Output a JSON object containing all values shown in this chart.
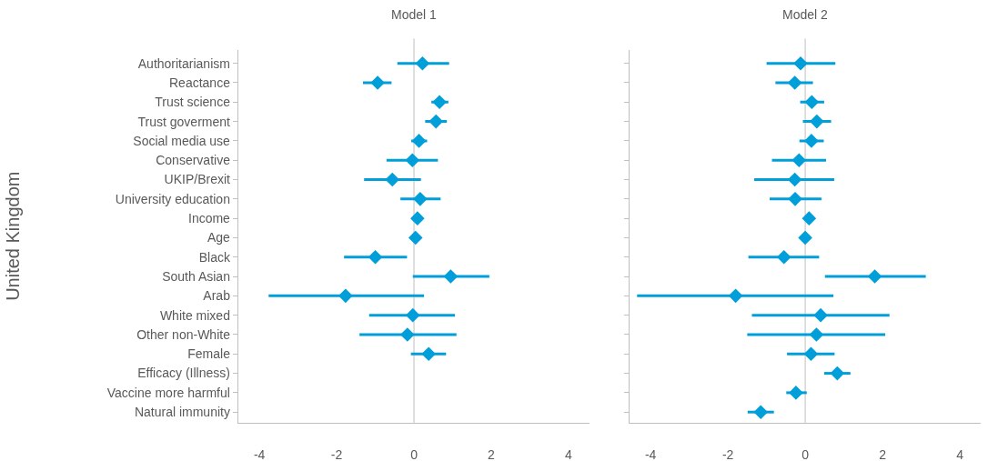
{
  "chart_data": [
    {
      "type": "scatter",
      "title": "Model 1",
      "ylabel": "United Kingdom",
      "orientation": "horizontal",
      "marker": "diamond",
      "grid": false,
      "categories": [
        "Authoritarianism",
        "Reactance",
        "Trust science",
        "Trust goverment",
        "Social media use",
        "Conservative",
        "UKIP/Brexit",
        "University education",
        "Income",
        "Age",
        "Black",
        "South Asian",
        "Arab",
        "White mixed",
        "Other non-White",
        "Female",
        "Efficacy (Illness)",
        "Vaccine more harmful",
        "Natural immunity"
      ],
      "series": [
        {
          "color": "#009fda",
          "values": [
            0.22,
            -0.94,
            0.66,
            0.57,
            0.13,
            -0.04,
            -0.56,
            0.16,
            0.09,
            0.04,
            -1.0,
            0.95,
            -1.77,
            -0.03,
            -0.17,
            0.38,
            null,
            null,
            null
          ],
          "errors": [
            [
              -0.43,
              0.91
            ],
            [
              -1.32,
              -0.58
            ],
            [
              0.45,
              0.89
            ],
            [
              0.29,
              0.85
            ],
            [
              -0.07,
              0.34
            ],
            [
              -0.71,
              0.62
            ],
            [
              -1.29,
              0.18
            ],
            [
              -0.35,
              0.69
            ],
            null,
            null,
            [
              -1.81,
              -0.18
            ],
            [
              -0.03,
              1.95
            ],
            [
              -3.76,
              0.26
            ],
            [
              -1.16,
              1.06
            ],
            [
              -1.41,
              1.1
            ],
            [
              -0.08,
              0.83
            ],
            null,
            null,
            null
          ]
        }
      ],
      "xlim": [
        -4.55,
        4.55
      ],
      "xticks": [
        -4,
        -2,
        0,
        2,
        4
      ],
      "ref_lines": [
        {
          "axis": "x",
          "value": 0,
          "color": "#bfbfbf"
        }
      ]
    },
    {
      "type": "scatter",
      "title": "Model 2",
      "orientation": "horizontal",
      "marker": "diamond",
      "grid": false,
      "tick_labels": "x",
      "categories": [
        null,
        null,
        null,
        null,
        null,
        null,
        null,
        null,
        null,
        null,
        null,
        null,
        null,
        null,
        null,
        null,
        null,
        null,
        null
      ],
      "series": [
        {
          "color": "#009fda",
          "values": [
            -0.12,
            -0.27,
            0.17,
            0.3,
            0.16,
            -0.16,
            -0.27,
            -0.26,
            0.1,
            0.0,
            -0.55,
            1.8,
            -1.8,
            0.4,
            0.29,
            0.15,
            0.83,
            -0.24,
            -1.15
          ],
          "errors": [
            [
              -1.0,
              0.78
            ],
            [
              -0.77,
              0.2
            ],
            [
              -0.13,
              0.49
            ],
            [
              -0.06,
              0.67
            ],
            [
              -0.15,
              0.48
            ],
            [
              -0.86,
              0.54
            ],
            [
              -1.32,
              0.75
            ],
            [
              -0.92,
              0.42
            ],
            null,
            null,
            [
              -1.47,
              0.36
            ],
            [
              0.51,
              3.12
            ],
            [
              -4.35,
              0.73
            ],
            [
              -1.38,
              2.18
            ],
            [
              -1.5,
              2.07
            ],
            [
              -0.47,
              0.76
            ],
            [
              0.49,
              1.17
            ],
            [
              -0.49,
              0.04
            ],
            [
              -1.49,
              -0.81
            ]
          ]
        }
      ],
      "xlim": [
        -4.55,
        4.55
      ],
      "xticks": [
        -4,
        -2,
        0,
        2,
        4
      ],
      "ref_lines": [
        {
          "axis": "x",
          "value": 0,
          "color": "#bfbfbf"
        }
      ]
    }
  ]
}
